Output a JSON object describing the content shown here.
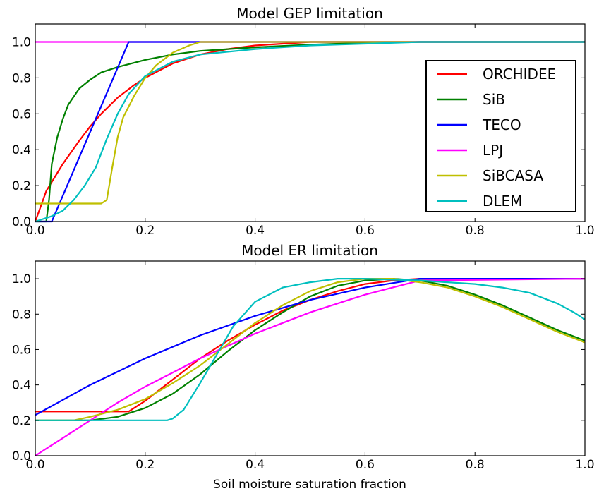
{
  "colors": {
    "ORCHIDEE": "#ff0000",
    "SiB": "#008000",
    "TECO": "#0000ff",
    "LPJ": "#ff00ff",
    "SiBCASA": "#bfbf00",
    "DLEM": "#00bfbf"
  },
  "chart_data": [
    {
      "type": "line",
      "title": "Model GEP limitation",
      "xlabel": "",
      "ylabel": "",
      "xlim": [
        0.0,
        1.0
      ],
      "ylim": [
        0.0,
        1.1
      ],
      "xticks": [
        "0.0",
        "0.2",
        "0.4",
        "0.6",
        "0.8",
        "1.0"
      ],
      "yticks": [
        "0.0",
        "0.2",
        "0.4",
        "0.6",
        "0.8",
        "1.0"
      ],
      "grid": false,
      "legend": {
        "position": "center-right",
        "entries": [
          "ORCHIDEE",
          "SiB",
          "TECO",
          "LPJ",
          "SiBCASA",
          "DLEM"
        ]
      },
      "series": [
        {
          "name": "LPJ",
          "x": [
            0.0,
            1.0
          ],
          "y": [
            1.0,
            1.0
          ]
        },
        {
          "name": "ORCHIDEE",
          "x": [
            0.0,
            0.02,
            0.05,
            0.08,
            0.1,
            0.12,
            0.15,
            0.18,
            0.2,
            0.25,
            0.3,
            0.35,
            0.4,
            0.45,
            0.5,
            1.0
          ],
          "y": [
            0.0,
            0.17,
            0.32,
            0.45,
            0.53,
            0.6,
            0.69,
            0.76,
            0.8,
            0.88,
            0.93,
            0.96,
            0.98,
            0.99,
            1.0,
            1.0
          ]
        },
        {
          "name": "SiB",
          "x": [
            0.0,
            0.02,
            0.025,
            0.03,
            0.04,
            0.05,
            0.06,
            0.08,
            0.1,
            0.12,
            0.15,
            0.2,
            0.25,
            0.3,
            0.4,
            0.5,
            0.6,
            0.7,
            1.0
          ],
          "y": [
            0.0,
            0.0,
            0.12,
            0.32,
            0.47,
            0.57,
            0.65,
            0.74,
            0.79,
            0.83,
            0.86,
            0.9,
            0.93,
            0.95,
            0.97,
            0.985,
            0.995,
            1.0,
            1.0
          ]
        },
        {
          "name": "TECO",
          "x": [
            0.0,
            0.03,
            0.17,
            1.0
          ],
          "y": [
            0.0,
            0.0,
            1.0,
            1.0
          ]
        },
        {
          "name": "SiBCASA",
          "x": [
            0.0,
            0.12,
            0.13,
            0.14,
            0.15,
            0.16,
            0.18,
            0.2,
            0.22,
            0.25,
            0.28,
            0.3,
            1.0
          ],
          "y": [
            0.1,
            0.1,
            0.12,
            0.3,
            0.47,
            0.58,
            0.7,
            0.8,
            0.87,
            0.94,
            0.98,
            1.0,
            1.0
          ]
        },
        {
          "name": "DLEM",
          "x": [
            0.0,
            0.03,
            0.05,
            0.07,
            0.09,
            0.11,
            0.13,
            0.15,
            0.17,
            0.2,
            0.25,
            0.3,
            0.4,
            0.5,
            0.6,
            0.7,
            0.8,
            1.0
          ],
          "y": [
            0.0,
            0.03,
            0.06,
            0.12,
            0.2,
            0.3,
            0.46,
            0.6,
            0.71,
            0.81,
            0.89,
            0.93,
            0.96,
            0.98,
            0.99,
            1.0,
            1.0,
            1.0
          ]
        }
      ]
    },
    {
      "type": "line",
      "title": "Model ER limitation",
      "xlabel": "Soil moisture saturation fraction",
      "ylabel": "",
      "xlim": [
        0.0,
        1.0
      ],
      "ylim": [
        0.0,
        1.1
      ],
      "xticks": [
        "0.0",
        "0.2",
        "0.4",
        "0.6",
        "0.8",
        "1.0"
      ],
      "yticks": [
        "0.0",
        "0.2",
        "0.4",
        "0.6",
        "0.8",
        "1.0"
      ],
      "grid": false,
      "series": [
        {
          "name": "ORCHIDEE",
          "x": [
            0.0,
            0.17,
            0.2,
            0.25,
            0.3,
            0.35,
            0.4,
            0.45,
            0.5,
            0.55,
            0.6,
            0.65,
            0.7,
            1.0
          ],
          "y": [
            0.25,
            0.25,
            0.31,
            0.43,
            0.55,
            0.65,
            0.74,
            0.82,
            0.88,
            0.93,
            0.97,
            0.99,
            1.0,
            1.0
          ]
        },
        {
          "name": "SiB",
          "x": [
            0.0,
            0.1,
            0.15,
            0.2,
            0.25,
            0.3,
            0.35,
            0.4,
            0.45,
            0.5,
            0.55,
            0.6,
            0.65,
            0.7,
            0.75,
            0.8,
            0.85,
            0.9,
            0.95,
            1.0
          ],
          "y": [
            0.2,
            0.2,
            0.22,
            0.27,
            0.35,
            0.46,
            0.59,
            0.71,
            0.81,
            0.9,
            0.96,
            0.99,
            1.0,
            0.99,
            0.96,
            0.91,
            0.85,
            0.78,
            0.71,
            0.65
          ]
        },
        {
          "name": "TECO",
          "x": [
            0.0,
            0.1,
            0.2,
            0.3,
            0.4,
            0.5,
            0.6,
            0.7,
            1.0
          ],
          "y": [
            0.23,
            0.4,
            0.55,
            0.68,
            0.79,
            0.88,
            0.95,
            1.0,
            1.0
          ]
        },
        {
          "name": "LPJ",
          "x": [
            0.0,
            0.05,
            0.1,
            0.15,
            0.2,
            0.25,
            0.3,
            0.35,
            0.4,
            0.45,
            0.5,
            0.55,
            0.6,
            0.65,
            0.7,
            1.0
          ],
          "y": [
            0.0,
            0.1,
            0.2,
            0.3,
            0.39,
            0.47,
            0.55,
            0.62,
            0.69,
            0.75,
            0.81,
            0.86,
            0.91,
            0.95,
            0.99,
            1.0
          ]
        },
        {
          "name": "SiBCASA",
          "x": [
            0.0,
            0.07,
            0.1,
            0.15,
            0.2,
            0.25,
            0.3,
            0.35,
            0.4,
            0.45,
            0.5,
            0.55,
            0.6,
            0.65,
            0.7,
            0.75,
            0.8,
            0.85,
            0.9,
            0.95,
            1.0
          ],
          "y": [
            0.2,
            0.2,
            0.22,
            0.26,
            0.32,
            0.41,
            0.51,
            0.63,
            0.75,
            0.85,
            0.93,
            0.98,
            1.0,
            1.0,
            0.98,
            0.95,
            0.9,
            0.84,
            0.77,
            0.7,
            0.64
          ]
        },
        {
          "name": "DLEM",
          "x": [
            0.0,
            0.24,
            0.25,
            0.27,
            0.3,
            0.33,
            0.36,
            0.4,
            0.45,
            0.5,
            0.55,
            0.6,
            0.7,
            0.8,
            0.85,
            0.9,
            0.95,
            0.98,
            1.0
          ],
          "y": [
            0.2,
            0.2,
            0.21,
            0.26,
            0.41,
            0.57,
            0.73,
            0.87,
            0.95,
            0.98,
            1.0,
            1.0,
            0.99,
            0.97,
            0.95,
            0.92,
            0.86,
            0.81,
            0.77
          ]
        }
      ]
    }
  ]
}
